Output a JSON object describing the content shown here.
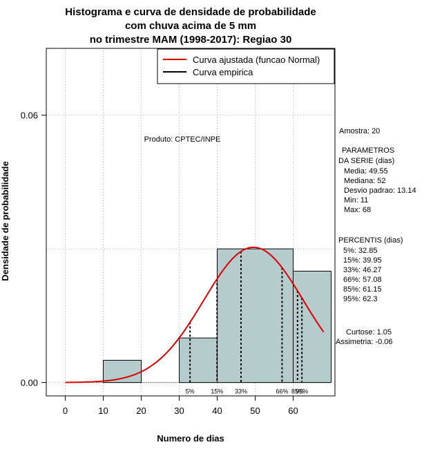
{
  "chart_data": {
    "type": "histogram",
    "title_lines": [
      "Histograma e curva de densidade de probabilidade",
      "com chuva acima de 5 mm",
      "no trimestre MAM (1998-2017): Regiao 30"
    ],
    "xlabel": "Numero de dias",
    "ylabel": "Densidade de probabilidade",
    "xlim": [
      -5,
      71
    ],
    "ylim": [
      -0.003,
      0.075
    ],
    "x_ticks": [
      0,
      10,
      20,
      30,
      40,
      50,
      60
    ],
    "y_ticks": [
      0.0,
      0.06
    ],
    "y_tick_labels": [
      "0.00",
      "0.06"
    ],
    "grid": true,
    "bins": [
      {
        "start": 10,
        "end": 20,
        "density": 0.005
      },
      {
        "start": 20,
        "end": 30,
        "density": 0.0
      },
      {
        "start": 30,
        "end": 40,
        "density": 0.01
      },
      {
        "start": 40,
        "end": 60,
        "density": 0.03
      },
      {
        "start": 60,
        "end": 70,
        "density": 0.025
      }
    ],
    "bar_color": "#b6cbcb",
    "curve_color": "#dd0000",
    "normal_fit": {
      "mean": 49.55,
      "sd": 13.14,
      "x_range": [
        0,
        68
      ]
    },
    "percentiles": [
      {
        "label": "5%",
        "x": 32.85
      },
      {
        "label": "15%",
        "x": 39.95
      },
      {
        "label": "33%",
        "x": 46.27
      },
      {
        "label": "66%",
        "x": 57.08
      },
      {
        "label": "85%",
        "x": 61.15
      },
      {
        "label": "95%",
        "x": 62.3
      }
    ],
    "legend": {
      "position": "top-right",
      "entries": [
        {
          "label": "Curva ajustada (funcao Normal)",
          "color": "#dd0000"
        },
        {
          "label": "Curva empirica",
          "color": "#000000"
        }
      ]
    },
    "product_label": "Produto: CPTEC/INPE"
  },
  "stats_panel": {
    "sample": "Amostra: 20",
    "params_header": [
      "PARAMETROS",
      "DA SERIE (dias)"
    ],
    "params": [
      "Media: 49.55",
      "Mediana: 52",
      "Desvio padrao: 13.14",
      "Min: 11",
      "Max: 68"
    ],
    "percentiles_header": "PERCENTIS (dias)",
    "percentiles": [
      "5%: 32.85",
      "15%: 39.95",
      "33%: 46.27",
      "66%: 57.08",
      "85%: 61.15",
      "95%: 62.3"
    ],
    "kurtosis": "Curtose: 1.05",
    "skewness": "Assimetria: -0.06"
  }
}
